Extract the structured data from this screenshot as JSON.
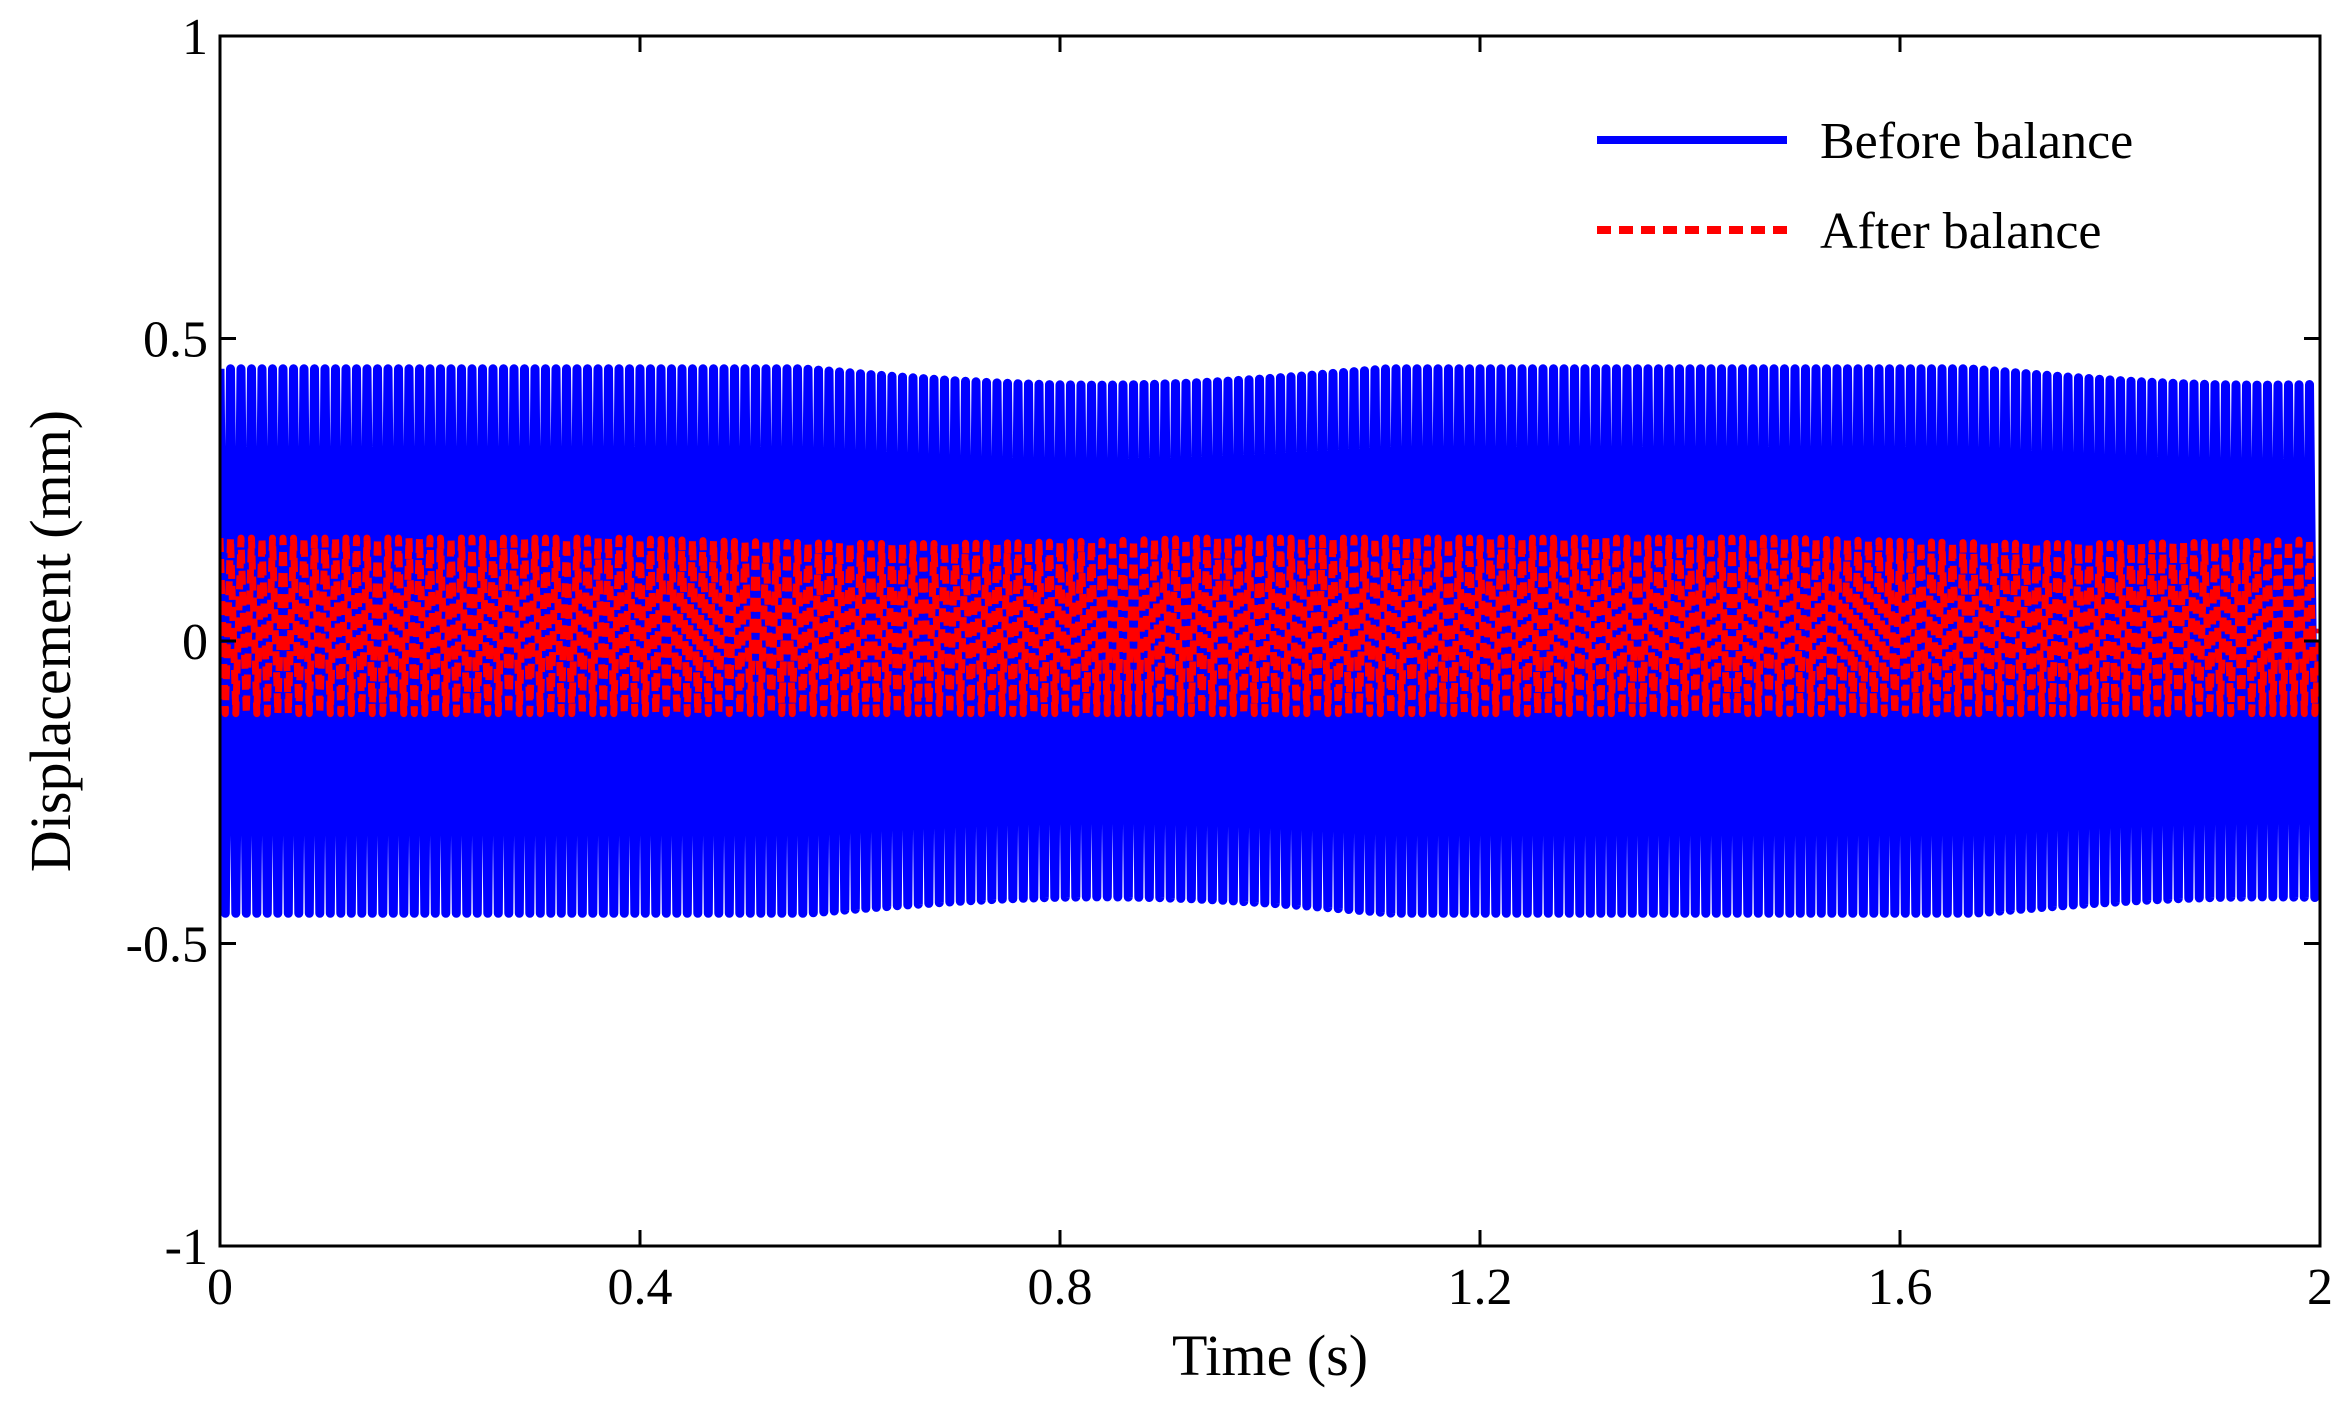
{
  "chart_data": {
    "type": "line",
    "title": "",
    "xlabel": "Time (s)",
    "ylabel": "Displacement (mm)",
    "xlim": [
      0,
      2
    ],
    "ylim": [
      -1,
      1
    ],
    "x_ticks": [
      0,
      0.4,
      0.8,
      1.2,
      1.6,
      2
    ],
    "x_tick_labels": [
      "0",
      "0.4",
      "0.8",
      "1.2",
      "1.6",
      "2"
    ],
    "y_ticks": [
      1,
      0.5,
      0,
      -0.5,
      -1
    ],
    "y_tick_labels": [
      "1",
      "0.5",
      "0",
      "-0.5",
      "-1"
    ],
    "grid": false,
    "legend_position": "top-right",
    "series": [
      {
        "name": "Before balance",
        "style": "solid",
        "color": "#0000FF",
        "model": "oscillation",
        "amplitude": 0.45,
        "offset": 0.0,
        "frequency_hz": 100,
        "duration_s": 2,
        "envelope_peak_max": 0.45,
        "envelope_trough_min": -0.45
      },
      {
        "name": "After balance",
        "style": "dashed",
        "color": "#FF0000",
        "model": "oscillation",
        "amplitude": 0.15,
        "offset": 0.02,
        "frequency_hz": 100,
        "duration_s": 2,
        "envelope_peak_max": 0.17,
        "envelope_trough_min": -0.12
      }
    ]
  }
}
